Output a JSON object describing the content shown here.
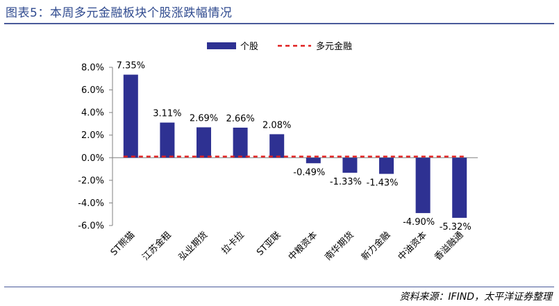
{
  "figure": {
    "title": "图表5：本周多元金融板块个股涨跌幅情况",
    "source": "资料来源：IFIND，太平洋证券整理"
  },
  "colors": {
    "bar": "#2e3192",
    "line": "#e02020",
    "rule": "#4a5a9a",
    "title": "#2f4a8f"
  },
  "chart_data": {
    "type": "bar",
    "categories": [
      "ST熊猫",
      "江苏金租",
      "弘业期货",
      "拉卡拉",
      "ST亚联",
      "中粮资本",
      "南华期货",
      "新力金融",
      "中油资本",
      "香溢融通"
    ],
    "series": [
      {
        "name": "个股",
        "type": "bar",
        "values": [
          7.35,
          3.11,
          2.69,
          2.66,
          2.08,
          -0.49,
          -1.33,
          -1.43,
          -4.9,
          -5.32
        ]
      },
      {
        "name": "多元金融",
        "type": "line",
        "style": "dashed",
        "values": [
          0.1,
          0.1,
          0.1,
          0.1,
          0.1,
          0.1,
          0.1,
          0.1,
          0.1,
          0.1
        ]
      }
    ],
    "data_labels": [
      "7.35%",
      "3.11%",
      "2.69%",
      "2.66%",
      "2.08%",
      "-0.49%",
      "-1.33%",
      "-1.43%",
      "-4.90%",
      "-5.32%"
    ],
    "yticks": [
      "8.0%",
      "6.0%",
      "4.0%",
      "2.0%",
      "0.0%",
      "-2.0%",
      "-4.0%",
      "-6.0%"
    ],
    "ylim": [
      -6,
      8
    ],
    "legend_position": "top-center",
    "grid": false
  }
}
